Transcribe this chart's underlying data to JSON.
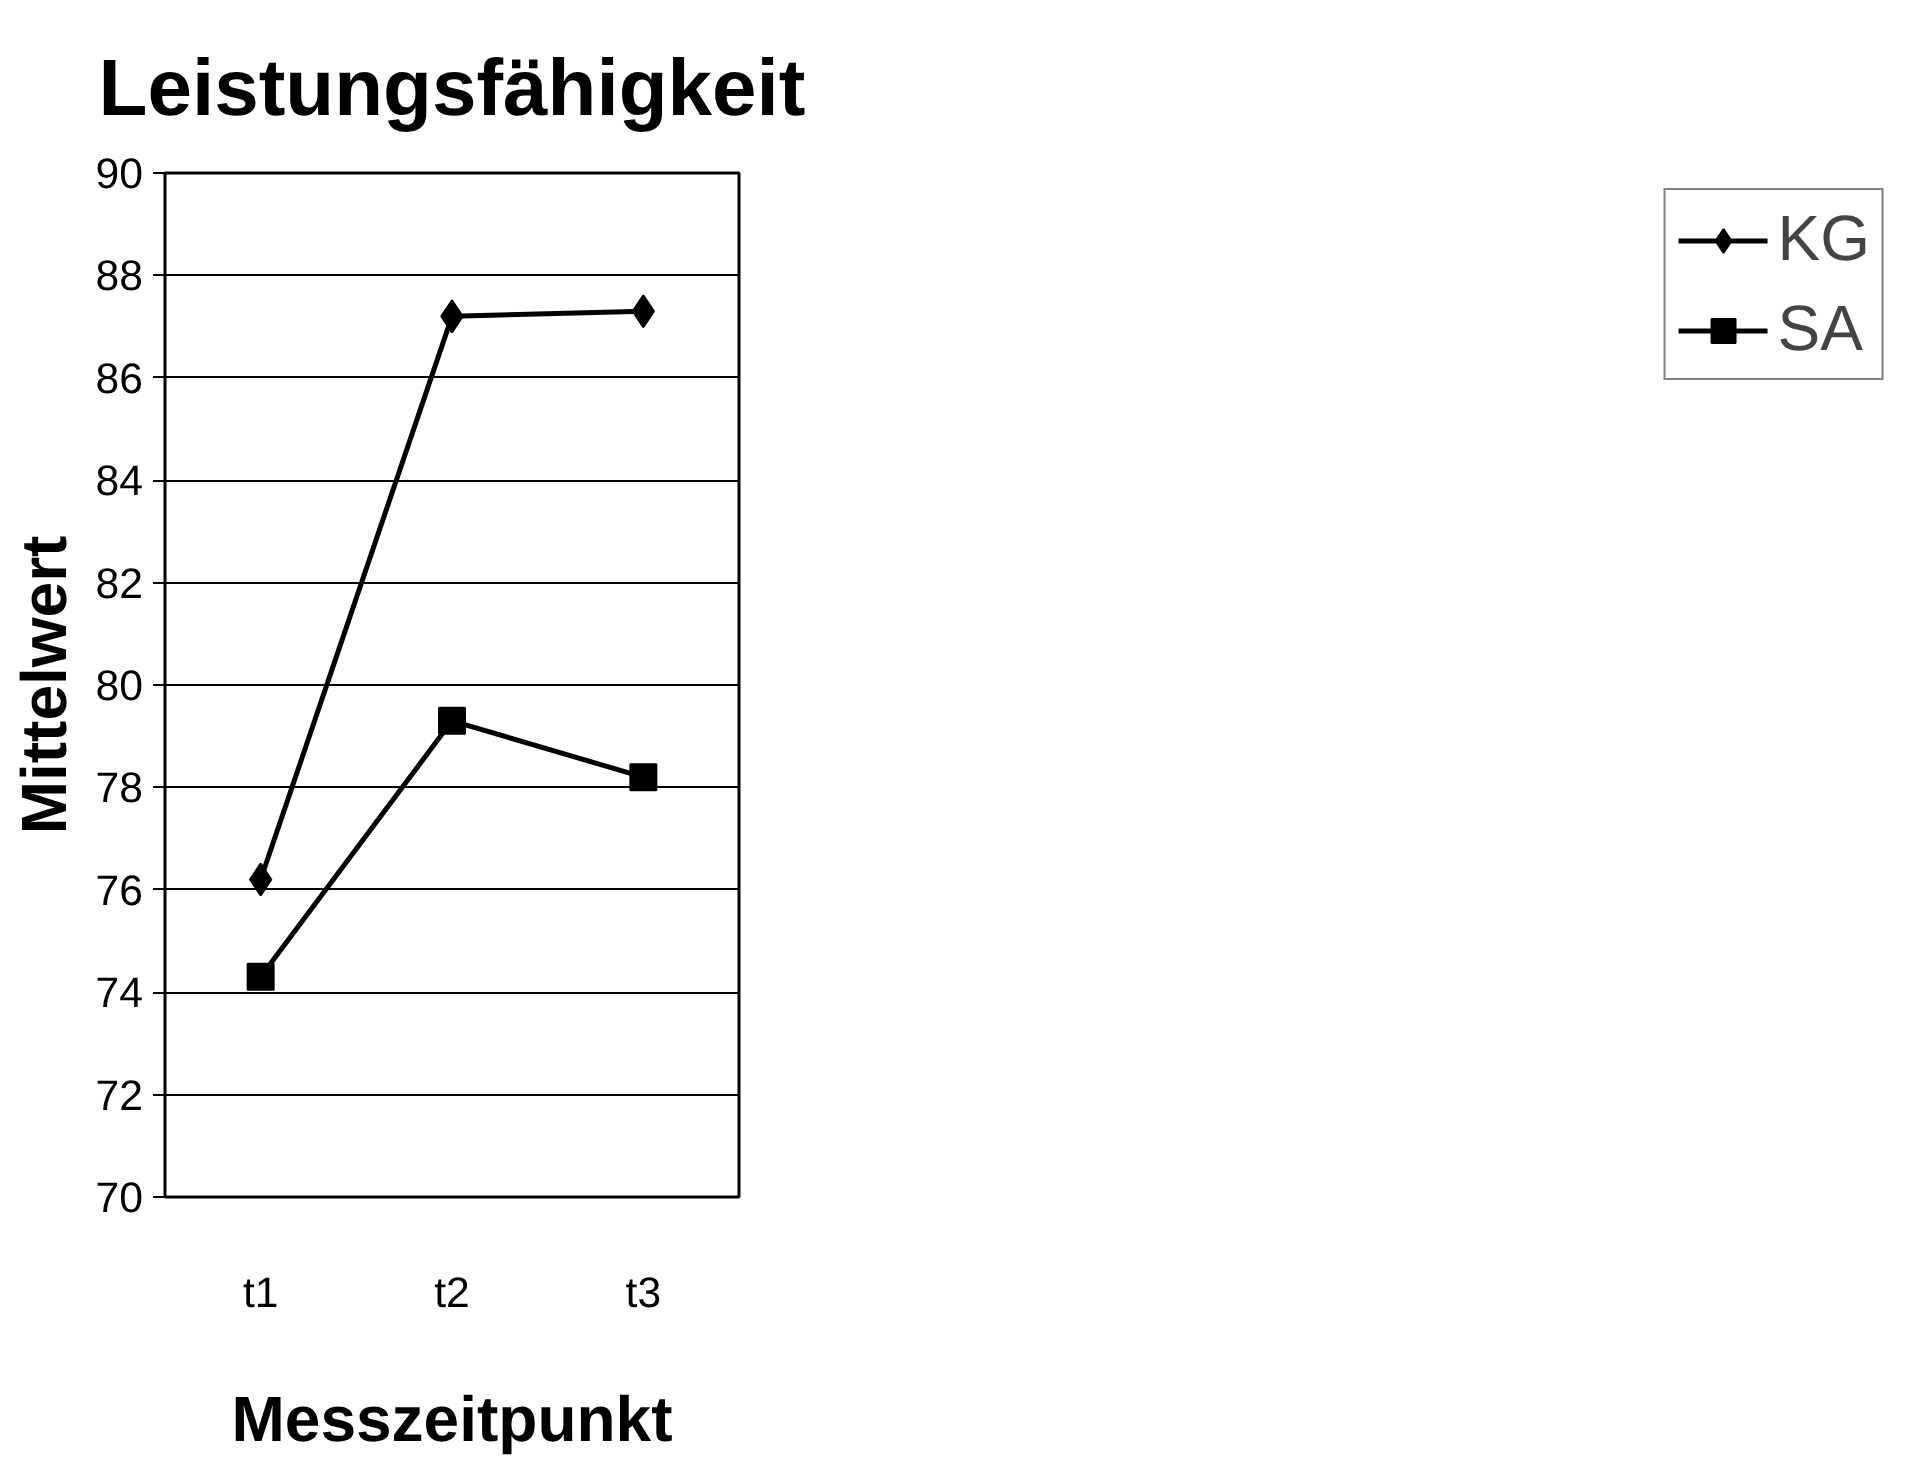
{
  "chart_data": {
    "type": "line",
    "title": "Leistungsfähigkeit",
    "xlabel": "Messzeitpunkt",
    "ylabel": "Mittelwert",
    "categories": [
      "t1",
      "t2",
      "t3"
    ],
    "series": [
      {
        "name": "KG",
        "color": "#000000",
        "marker": "diamond",
        "values": [
          76.2,
          87.2,
          87.3
        ]
      },
      {
        "name": "SA",
        "color": "#000000",
        "marker": "square",
        "values": [
          74.3,
          79.3,
          78.2
        ]
      }
    ],
    "ylim": [
      70,
      90
    ],
    "yticks": [
      70,
      72,
      74,
      76,
      78,
      80,
      82,
      84,
      86,
      88,
      90
    ],
    "grid": "y",
    "legend": "right",
    "line_style": "solid"
  }
}
